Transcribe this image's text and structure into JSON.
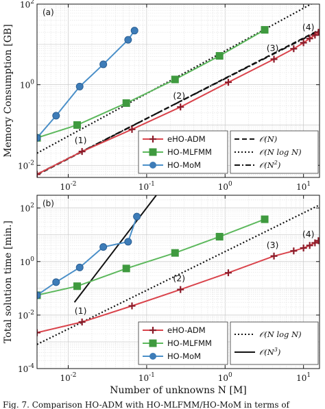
{
  "caption": "Fig. 7.    Comparison HO-ADM with HO-MLFMM/HO-MoM in terms of",
  "colors": {
    "adm": "#d9434b",
    "mlfmm": "#5cb85c",
    "mom": "#4a8fc8",
    "black": "#111111"
  },
  "chart_data": [
    {
      "type": "line",
      "panel_label": "(a)",
      "ylabel": "Memory Consumption [GB]",
      "xlabel": "Number of unknowns N [M]",
      "xscale": "log",
      "yscale": "log",
      "xlim": [
        0.004,
        16
      ],
      "ylim": [
        0.005,
        100
      ],
      "x_ticks": [
        "10^{-2}",
        "10^{-1}",
        "10^{0}",
        "10^{1}"
      ],
      "y_ticks": [
        "10^{-2}",
        "10^{0}",
        "10^{2}"
      ],
      "grid": true,
      "series": [
        {
          "name": "eHO-ADM",
          "color": "#d9434b",
          "marker": "plus",
          "x": [
            0.004,
            0.015,
            0.065,
            0.27,
            1.1,
            4.2,
            7.5,
            10,
            12,
            14,
            15.5
          ],
          "y": [
            0.006,
            0.022,
            0.078,
            0.28,
            1.15,
            4.3,
            7.8,
            11,
            14,
            17,
            20
          ]
        },
        {
          "name": "HO-MLFMM",
          "color": "#5cb85c",
          "marker": "square",
          "x": [
            0.004,
            0.013,
            0.055,
            0.23,
            0.85,
            3.2
          ],
          "y": [
            0.048,
            0.1,
            0.35,
            1.35,
            5.2,
            23
          ]
        },
        {
          "name": "HO-MoM",
          "color": "#4a8fc8",
          "marker": "circle",
          "x": [
            0.004,
            0.007,
            0.014,
            0.028,
            0.058,
            0.07
          ],
          "y": [
            0.048,
            0.17,
            0.9,
            3.2,
            13,
            22
          ]
        }
      ],
      "reference_lines": [
        {
          "name": "O(N)",
          "style": "dashed",
          "x": [
            0.004,
            16
          ],
          "y": [
            0.0058,
            23
          ]
        },
        {
          "name": "O(N log N)",
          "style": "dotted",
          "x": [
            0.004,
            16
          ],
          "y": [
            0.02,
            130
          ]
        },
        {
          "name": "O(N^2)",
          "style": "dashdot",
          "x": [
            0.004,
            16
          ],
          "y": [
            0.006,
            22
          ]
        }
      ],
      "annotations": [
        {
          "text": "(1)",
          "x": 0.015,
          "y": 0.022
        },
        {
          "text": "(2)",
          "x": 0.27,
          "y": 0.28
        },
        {
          "text": "(3)",
          "x": 4.2,
          "y": 4.3
        },
        {
          "text": "(4)",
          "x": 12,
          "y": 14
        }
      ],
      "legend_left": [
        "eHO-ADM",
        "HO-MLFMM",
        "HO-MoM"
      ],
      "legend_right": [
        "O(N)",
        "O(N log N)",
        "O(N^2)"
      ]
    },
    {
      "type": "line",
      "panel_label": "(b)",
      "ylabel": "Total solution time [min.]",
      "xlabel": "Number of unknowns N [M]",
      "xscale": "log",
      "yscale": "log",
      "xlim": [
        0.004,
        16
      ],
      "ylim": [
        0.0001,
        300
      ],
      "x_ticks": [
        "10^{-2}",
        "10^{-1}",
        "10^{0}",
        "10^{1}"
      ],
      "y_ticks": [
        "10^{-4}",
        "10^{-2}",
        "10^{0}",
        "10^{2}"
      ],
      "grid": true,
      "series": [
        {
          "name": "eHO-ADM",
          "color": "#d9434b",
          "marker": "plus",
          "x": [
            0.004,
            0.015,
            0.065,
            0.27,
            1.1,
            4.2,
            7.5,
            10,
            12,
            14,
            15.5
          ],
          "y": [
            0.0022,
            0.0055,
            0.022,
            0.09,
            0.38,
            1.6,
            2.5,
            3.2,
            4,
            5,
            6
          ]
        },
        {
          "name": "HO-MLFMM",
          "color": "#5cb85c",
          "marker": "square",
          "x": [
            0.004,
            0.013,
            0.055,
            0.23,
            0.85,
            3.2
          ],
          "y": [
            0.055,
            0.12,
            0.55,
            2.1,
            8.5,
            38
          ]
        },
        {
          "name": "HO-MoM",
          "color": "#4a8fc8",
          "marker": "circle",
          "x": [
            0.004,
            0.007,
            0.014,
            0.028,
            0.058,
            0.075
          ],
          "y": [
            0.055,
            0.17,
            0.6,
            3.5,
            5.5,
            48
          ]
        }
      ],
      "reference_lines": [
        {
          "name": "O(N log N)",
          "style": "dotted",
          "x": [
            0.004,
            16
          ],
          "y": [
            0.0008,
            130
          ]
        },
        {
          "name": "O(N^3)",
          "style": "solid",
          "x": [
            0.012,
            0.15
          ],
          "y": [
            0.03,
            480
          ]
        }
      ],
      "annotations": [
        {
          "text": "(1)",
          "x": 0.015,
          "y": 0.0055
        },
        {
          "text": "(2)",
          "x": 0.27,
          "y": 0.09
        },
        {
          "text": "(3)",
          "x": 4.2,
          "y": 1.6
        },
        {
          "text": "(4)",
          "x": 12,
          "y": 4
        }
      ],
      "legend_left": [
        "eHO-ADM",
        "HO-MLFMM",
        "HO-MoM"
      ],
      "legend_right": [
        "O(N log N)",
        "O(N^3)"
      ]
    }
  ]
}
